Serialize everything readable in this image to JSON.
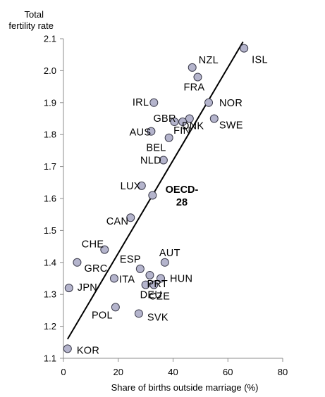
{
  "chart_data": {
    "type": "scatter",
    "ylabel": [
      "Total",
      "fertility rate"
    ],
    "xlabel": "Share of births outside marriage (%)",
    "xlim": [
      0,
      80
    ],
    "ylim": [
      1.1,
      2.1
    ],
    "xticks": [
      "0",
      "20",
      "40",
      "60",
      "80"
    ],
    "yticks": [
      "1.1",
      "1.2",
      "1.3",
      "1.4",
      "1.5",
      "1.6",
      "1.7",
      "1.8",
      "1.9",
      "2.0",
      "2.1"
    ],
    "grid": false,
    "marker_color": "#b4b4cc",
    "points": [
      {
        "label": "ISL",
        "x": 65.9,
        "y": 2.07
      },
      {
        "label": "NZL",
        "x": 47.0,
        "y": 2.01
      },
      {
        "label": "FRA",
        "x": 49.0,
        "y": 1.98
      },
      {
        "label": "IRL",
        "x": 33.0,
        "y": 1.9
      },
      {
        "label": "NOR",
        "x": 53.0,
        "y": 1.9
      },
      {
        "label": "DNK",
        "x": 46.0,
        "y": 1.85
      },
      {
        "label": "GBR",
        "x": 40.5,
        "y": 1.84
      },
      {
        "label": "FIN",
        "x": 43.5,
        "y": 1.84
      },
      {
        "label": "SWE",
        "x": 55.0,
        "y": 1.85
      },
      {
        "label": "AUS",
        "x": 32.0,
        "y": 1.81
      },
      {
        "label": "BEL",
        "x": 38.5,
        "y": 1.79
      },
      {
        "label": "NLD",
        "x": 36.5,
        "y": 1.72
      },
      {
        "label": "LUX",
        "x": 28.5,
        "y": 1.64
      },
      {
        "label": "OECD-28",
        "x": 32.5,
        "y": 1.61
      },
      {
        "label": "CAN",
        "x": 24.5,
        "y": 1.54
      },
      {
        "label": "CHE",
        "x": 15.0,
        "y": 1.44
      },
      {
        "label": "GRC",
        "x": 5.0,
        "y": 1.4
      },
      {
        "label": "AUT",
        "x": 37.0,
        "y": 1.4
      },
      {
        "label": "ESP",
        "x": 28.0,
        "y": 1.38
      },
      {
        "label": "PRT",
        "x": 31.5,
        "y": 1.36
      },
      {
        "label": "ITA",
        "x": 18.5,
        "y": 1.35
      },
      {
        "label": "HUN",
        "x": 35.5,
        "y": 1.35
      },
      {
        "label": "DEU",
        "x": 30.0,
        "y": 1.33
      },
      {
        "label": "CZE",
        "x": 33.0,
        "y": 1.33
      },
      {
        "label": "JPN",
        "x": 2.0,
        "y": 1.32
      },
      {
        "label": "POL",
        "x": 19.0,
        "y": 1.26
      },
      {
        "label": "SVK",
        "x": 27.5,
        "y": 1.24
      },
      {
        "label": "KOR",
        "x": 1.5,
        "y": 1.13
      }
    ],
    "trendline": {
      "x": [
        1.5,
        65.5
      ],
      "y": [
        1.16,
        2.09
      ]
    },
    "annotation": {
      "lines": [
        "OECD-",
        "28"
      ]
    }
  }
}
